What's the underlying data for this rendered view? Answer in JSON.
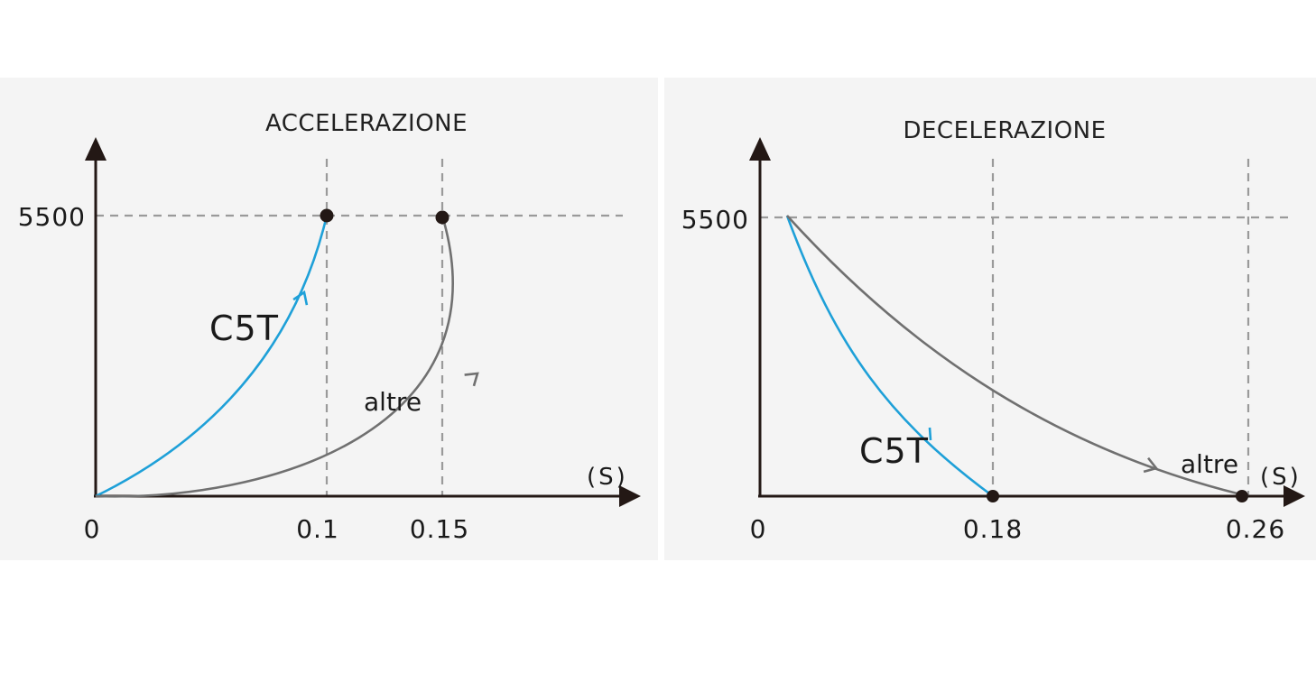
{
  "chart_data": [
    {
      "type": "line",
      "title": "ACCELERAZIONE",
      "x_unit": "(S)",
      "x_ticks": [
        "0",
        "0.1",
        "0.15"
      ],
      "y_ticks": [
        "5500"
      ],
      "xlim": [
        0,
        0.17
      ],
      "ylim": [
        0,
        5500
      ],
      "grid": "dashed reference lines",
      "series": [
        {
          "name": "C5T",
          "color": "#1ea0d8",
          "points": [
            [
              0,
              0
            ],
            [
              0.1,
              5500
            ]
          ],
          "shape": "rising curve"
        },
        {
          "name": "altre",
          "color": "#707070",
          "points": [
            [
              0,
              0
            ],
            [
              0.15,
              5500
            ]
          ],
          "shape": "rising curve"
        }
      ]
    },
    {
      "type": "line",
      "title": "DECELERAZIONE",
      "x_unit": "(S)",
      "x_ticks": [
        "0",
        "0.18",
        "0.26"
      ],
      "y_ticks": [
        "5500"
      ],
      "xlim": [
        0,
        0.275
      ],
      "ylim": [
        0,
        5500
      ],
      "grid": "dashed reference lines",
      "series": [
        {
          "name": "C5T",
          "color": "#1ea0d8",
          "points": [
            [
              0,
              5500
            ],
            [
              0.18,
              0
            ]
          ],
          "shape": "falling curve"
        },
        {
          "name": "altre",
          "color": "#707070",
          "points": [
            [
              0,
              5500
            ],
            [
              0.26,
              0
            ]
          ],
          "shape": "falling curve"
        }
      ]
    }
  ]
}
